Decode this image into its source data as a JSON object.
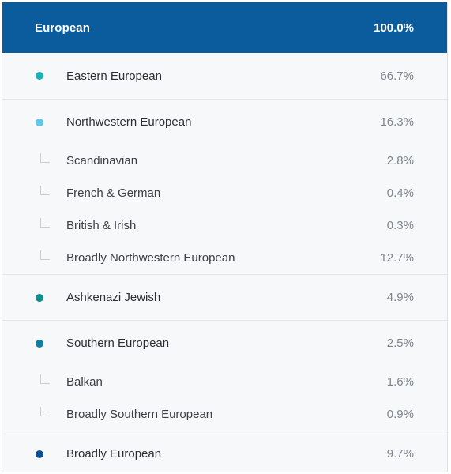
{
  "header": {
    "title": "European",
    "percent": "100.0%",
    "color": "#0a5c9c"
  },
  "groups": [
    {
      "label": "Eastern European",
      "percent": "66.7%",
      "color": "#17b3b8",
      "children": []
    },
    {
      "label": "Northwestern European",
      "percent": "16.3%",
      "color": "#5ec8ea",
      "children": [
        {
          "label": "Scandinavian",
          "percent": "2.8%"
        },
        {
          "label": "French & German",
          "percent": "0.4%"
        },
        {
          "label": "British & Irish",
          "percent": "0.3%"
        },
        {
          "label": "Broadly Northwestern European",
          "percent": "12.7%"
        }
      ]
    },
    {
      "label": "Ashkenazi Jewish",
      "percent": "4.9%",
      "color": "#138f8f",
      "children": []
    },
    {
      "label": "Southern European",
      "percent": "2.5%",
      "color": "#0e7fa0",
      "children": [
        {
          "label": "Balkan",
          "percent": "1.6%"
        },
        {
          "label": "Broadly Southern European",
          "percent": "0.9%"
        }
      ]
    },
    {
      "label": "Broadly European",
      "percent": "9.7%",
      "color": "#0c4f94",
      "children": []
    }
  ]
}
